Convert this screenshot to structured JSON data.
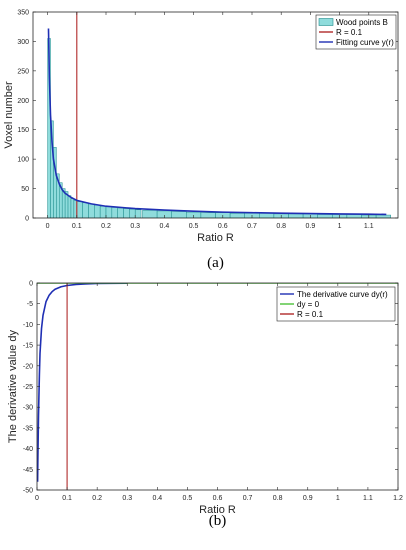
{
  "chart_data": [
    {
      "type": "bar",
      "panel_caption": "(a)",
      "title": "",
      "xlabel": "Ratio R",
      "ylabel": "Voxel number",
      "xlim": [
        -0.05,
        1.2
      ],
      "ylim": [
        0,
        350
      ],
      "xticks": [
        0,
        0.1,
        0.2,
        0.3,
        0.4,
        0.5,
        0.6,
        0.7,
        0.8,
        0.9,
        1,
        1.1
      ],
      "xtick_labels": [
        "0",
        "0.1",
        "0.2",
        "0.3",
        "0.4",
        "0.5",
        "0.6",
        "0.7",
        "0.8",
        "0.9",
        "1",
        "1.1"
      ],
      "yticks": [
        0,
        50,
        100,
        150,
        200,
        250,
        300,
        350
      ],
      "ytick_labels": [
        "0",
        "50",
        "100",
        "150",
        "200",
        "250",
        "300",
        "350"
      ],
      "grid": false,
      "legend": "top-right",
      "series": [
        {
          "name": "Wood points B",
          "kind": "histogram",
          "bin_width": 0.01,
          "x": [
            0.005,
            0.015,
            0.025,
            0.035,
            0.045,
            0.055,
            0.065,
            0.075,
            0.085,
            0.095,
            0.11,
            0.13,
            0.15,
            0.17,
            0.19,
            0.21,
            0.23,
            0.25,
            0.27,
            0.29,
            0.31,
            0.35,
            0.4,
            0.45,
            0.5,
            0.55,
            0.6,
            0.65,
            0.7,
            0.75,
            0.8,
            0.85,
            0.9,
            0.95,
            1.0,
            1.05,
            1.1,
            1.15
          ],
          "values": [
            305,
            165,
            120,
            75,
            60,
            50,
            45,
            38,
            33,
            30,
            28,
            26,
            24,
            22,
            20,
            19,
            18,
            17,
            16,
            15,
            14,
            13,
            12,
            11,
            10,
            9,
            9,
            8,
            8,
            8,
            7,
            7,
            7,
            6,
            6,
            6,
            5,
            5
          ]
        },
        {
          "name": "R = 0.1",
          "kind": "vline",
          "x": 0.1
        },
        {
          "name": "Fitting curve y(r)",
          "kind": "line",
          "x": [
            0.003,
            0.006,
            0.01,
            0.015,
            0.02,
            0.03,
            0.04,
            0.05,
            0.06,
            0.08,
            0.1,
            0.15,
            0.2,
            0.3,
            0.4,
            0.5,
            0.6,
            0.7,
            0.8,
            0.9,
            1.0,
            1.1,
            1.16
          ],
          "values": [
            322,
            240,
            175,
            130,
            100,
            72,
            58,
            48,
            42,
            35,
            30,
            24,
            20,
            16,
            13.5,
            11.5,
            10,
            9,
            8.2,
            7.5,
            6.9,
            6.4,
            6.1
          ]
        }
      ]
    },
    {
      "type": "line",
      "panel_caption": "(b)",
      "title": "",
      "xlabel": "Ratio R",
      "ylabel": "The derivative value dy",
      "xlim": [
        0,
        1.2
      ],
      "ylim": [
        -50,
        0
      ],
      "xticks": [
        0,
        0.1,
        0.2,
        0.3,
        0.4,
        0.5,
        0.6,
        0.7,
        0.8,
        0.9,
        1,
        1.1,
        1.2
      ],
      "xtick_labels": [
        "0",
        "0.1",
        "0.2",
        "0.3",
        "0.4",
        "0.5",
        "0.6",
        "0.7",
        "0.8",
        "0.9",
        "1",
        "1.1",
        "1.2"
      ],
      "yticks": [
        -50,
        -45,
        -40,
        -35,
        -30,
        -25,
        -20,
        -15,
        -10,
        -5,
        0
      ],
      "ytick_labels": [
        "-50",
        "-45",
        "-40",
        "-35",
        "-30",
        "-25",
        "-20",
        "-15",
        "-10",
        "-5",
        "0"
      ],
      "grid": false,
      "legend": "top-right",
      "series": [
        {
          "name": "The derivative curve dy(r)",
          "kind": "line",
          "x": [
            0.002,
            0.003,
            0.005,
            0.008,
            0.01,
            0.015,
            0.02,
            0.03,
            0.04,
            0.05,
            0.06,
            0.08,
            0.1,
            0.13,
            0.16,
            0.2,
            0.3
          ],
          "values": [
            -48,
            -42,
            -32,
            -22,
            -17,
            -11,
            -7.8,
            -4.5,
            -3,
            -2.1,
            -1.5,
            -0.9,
            -0.6,
            -0.35,
            -0.22,
            -0.12,
            -0.04
          ]
        },
        {
          "name": "dy = 0",
          "kind": "hline",
          "y": 0
        },
        {
          "name": "R = 0.1",
          "kind": "vline",
          "x": 0.1
        }
      ]
    }
  ],
  "colors": {
    "histogram_fill": "#8fdcdc",
    "histogram_edge": "#1e8c8c",
    "fit_curve": "#1f2fb4",
    "r_line": "#b02a2a",
    "derivative_curve": "#1f2fb4",
    "zero_line": "#4cc23a",
    "axes": "#262626"
  }
}
